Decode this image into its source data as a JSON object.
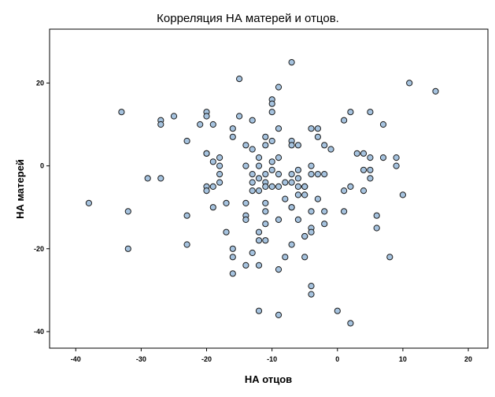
{
  "chart_data": {
    "type": "scatter",
    "title": "Корреляция НА матерей и отцов.",
    "xlabel": "НА отцов",
    "ylabel": "НА матерей",
    "xlim": [
      -44,
      23
    ],
    "ylim": [
      -44,
      33
    ],
    "xticks": [
      -40,
      -30,
      -20,
      -10,
      0,
      10,
      20
    ],
    "yticks": [
      -40,
      -20,
      0,
      20
    ],
    "xtick_labels": [
      "-40",
      "-30",
      "-20",
      "-10",
      "0",
      "10",
      "20"
    ],
    "ytick_labels": [
      "-40",
      "-20",
      "0",
      "20"
    ],
    "grid": false,
    "marker_fill": "#a6c3df",
    "marker_stroke": "#1a1a1a",
    "points": [
      [
        -7,
        25
      ],
      [
        -15,
        21
      ],
      [
        -9,
        19
      ],
      [
        11,
        20
      ],
      [
        15,
        18
      ],
      [
        -33,
        13
      ],
      [
        -27,
        11
      ],
      [
        -27,
        10
      ],
      [
        -25,
        12
      ],
      [
        -21,
        10
      ],
      [
        -20,
        13
      ],
      [
        -20,
        12
      ],
      [
        -19,
        10
      ],
      [
        -15,
        12
      ],
      [
        -13,
        11
      ],
      [
        -10,
        16
      ],
      [
        -10,
        15
      ],
      [
        -10,
        13
      ],
      [
        2,
        13
      ],
      [
        5,
        13
      ],
      [
        7,
        10
      ],
      [
        -16,
        9
      ],
      [
        -16,
        7
      ],
      [
        -9,
        9
      ],
      [
        -4,
        9
      ],
      [
        -3,
        9
      ],
      [
        -3,
        7
      ],
      [
        -11,
        7
      ],
      [
        -10,
        6
      ],
      [
        -7,
        6
      ],
      [
        -6,
        5
      ],
      [
        -7,
        5
      ],
      [
        -2,
        5
      ],
      [
        1,
        11
      ],
      [
        -23,
        6
      ],
      [
        -14,
        5
      ],
      [
        -13,
        4
      ],
      [
        -11,
        5
      ],
      [
        -1,
        4
      ],
      [
        -20,
        3
      ],
      [
        -20,
        3
      ],
      [
        -18,
        2
      ],
      [
        -19,
        1
      ],
      [
        -12,
        2
      ],
      [
        -10,
        1
      ],
      [
        -9,
        2
      ],
      [
        3,
        3
      ],
      [
        4,
        3
      ],
      [
        5,
        2
      ],
      [
        7,
        2
      ],
      [
        9,
        2
      ],
      [
        -18,
        0
      ],
      [
        -14,
        0
      ],
      [
        -12,
        0
      ],
      [
        -10,
        -1
      ],
      [
        -6,
        -1
      ],
      [
        -4,
        0
      ],
      [
        4,
        -1
      ],
      [
        5,
        -1
      ],
      [
        9,
        0
      ],
      [
        -18,
        -2
      ],
      [
        -13,
        -2
      ],
      [
        -11,
        -2
      ],
      [
        -9,
        -2
      ],
      [
        -7,
        -2
      ],
      [
        -6,
        -3
      ],
      [
        -4,
        -2
      ],
      [
        -3,
        -2
      ],
      [
        -2,
        -2
      ],
      [
        5,
        -3
      ],
      [
        -20,
        -5
      ],
      [
        -19,
        -5
      ],
      [
        -18,
        -4
      ],
      [
        -13,
        -4
      ],
      [
        -13,
        -6
      ],
      [
        -12,
        -3
      ],
      [
        -11,
        -4
      ],
      [
        -11,
        -5
      ],
      [
        -10,
        -5
      ],
      [
        -9,
        -5
      ],
      [
        -8,
        -4
      ],
      [
        -7,
        -4
      ],
      [
        -6,
        -5
      ],
      [
        -5,
        -5
      ],
      [
        1,
        -6
      ],
      [
        2,
        -5
      ],
      [
        4,
        -6
      ],
      [
        -29,
        -3
      ],
      [
        -27,
        -3
      ],
      [
        -20,
        -6
      ],
      [
        -12,
        -6
      ],
      [
        -8,
        -8
      ],
      [
        -5,
        -5
      ],
      [
        -5,
        -7
      ],
      [
        -3,
        -8
      ],
      [
        10,
        -7
      ],
      [
        -38,
        -9
      ],
      [
        -32,
        -11
      ],
      [
        -23,
        -12
      ],
      [
        -19,
        -10
      ],
      [
        -17,
        -9
      ],
      [
        -14,
        -9
      ],
      [
        -14,
        -12
      ],
      [
        -11,
        -9
      ],
      [
        -11,
        -11
      ],
      [
        -7,
        -10
      ],
      [
        -7,
        -10
      ],
      [
        -6,
        -7
      ],
      [
        -4,
        -11
      ],
      [
        -2,
        -11
      ],
      [
        1,
        -11
      ],
      [
        6,
        -12
      ],
      [
        -14,
        -13
      ],
      [
        -11,
        -14
      ],
      [
        -9,
        -13
      ],
      [
        -6,
        -13
      ],
      [
        -4,
        -15
      ],
      [
        -5,
        -17
      ],
      [
        -5,
        -17
      ],
      [
        -2,
        -14
      ],
      [
        -4,
        -16
      ],
      [
        6,
        -15
      ],
      [
        -17,
        -16
      ],
      [
        -12,
        -16
      ],
      [
        -12,
        -18
      ],
      [
        -11,
        -18
      ],
      [
        -7,
        -19
      ],
      [
        -16,
        -20
      ],
      [
        -16,
        -22
      ],
      [
        -13,
        -21
      ],
      [
        -8,
        -22
      ],
      [
        -5,
        -22
      ],
      [
        8,
        -22
      ],
      [
        -32,
        -20
      ],
      [
        -23,
        -19
      ],
      [
        -14,
        -24
      ],
      [
        -12,
        -24
      ],
      [
        -9,
        -25
      ],
      [
        -16,
        -26
      ],
      [
        -4,
        -29
      ],
      [
        -4,
        -31
      ],
      [
        -12,
        -35
      ],
      [
        -9,
        -36
      ],
      [
        0,
        -35
      ],
      [
        2,
        -38
      ]
    ]
  }
}
